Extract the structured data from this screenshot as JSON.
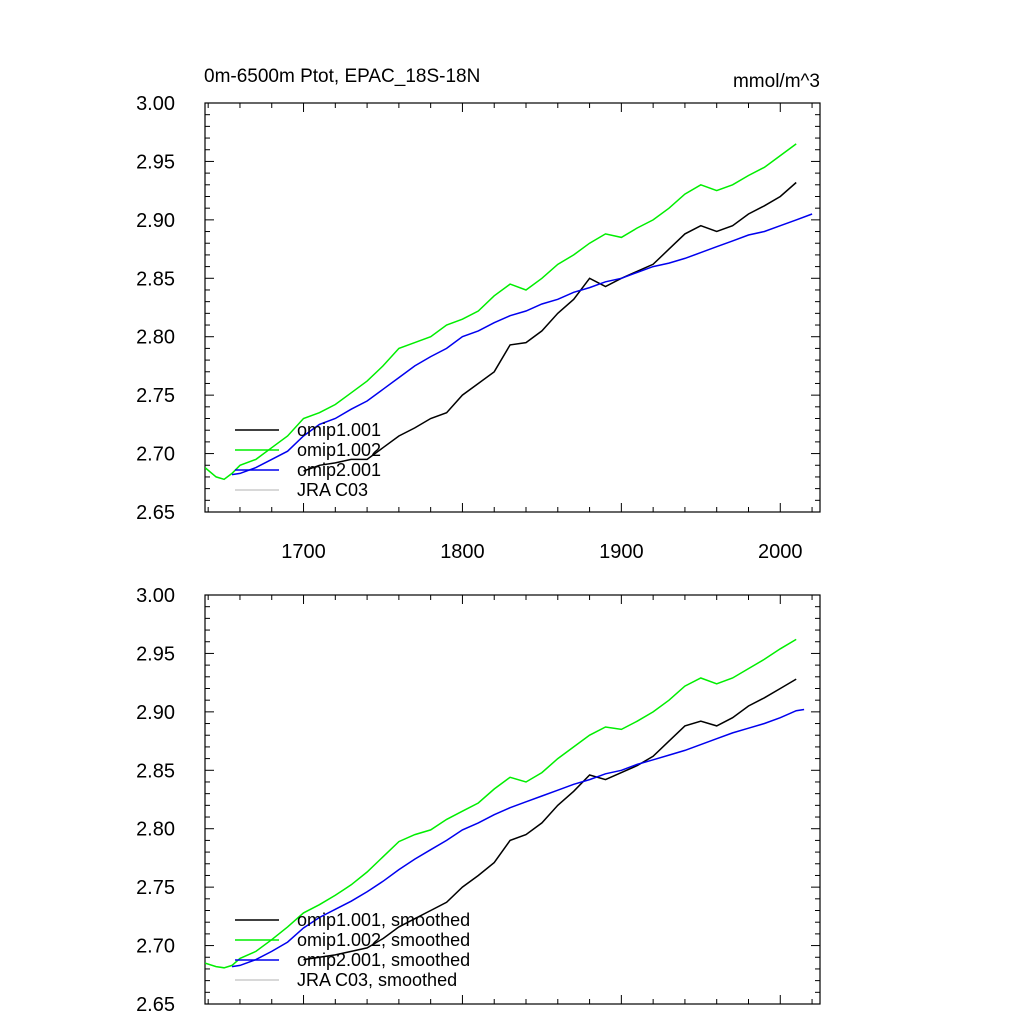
{
  "header": {
    "title": "0m-6500m Ptot, EPAC_18S-18N",
    "units": "mmol/m^3"
  },
  "chart_data": [
    {
      "type": "line",
      "title": "0m-6500m Ptot, EPAC_18S-18N",
      "units_label": "mmol/m^3",
      "xlim": [
        1638,
        2025
      ],
      "ylim": [
        2.65,
        3.0
      ],
      "xticks": [
        1700,
        1800,
        1900,
        2000
      ],
      "xtick_labels": [
        "1700",
        "1800",
        "1900",
        "2000"
      ],
      "yticks": [
        2.65,
        2.7,
        2.75,
        2.8,
        2.85,
        2.9,
        2.95,
        3.0
      ],
      "ytick_labels": [
        "2.65",
        "2.70",
        "2.75",
        "2.80",
        "2.85",
        "2.90",
        "2.95",
        "3.00"
      ],
      "legend_position": "lower-left",
      "series": [
        {
          "name": "omip1.001",
          "color": "#000000",
          "x": [
            1700,
            1710,
            1720,
            1730,
            1740,
            1750,
            1760,
            1770,
            1780,
            1790,
            1800,
            1810,
            1820,
            1830,
            1840,
            1850,
            1860,
            1870,
            1880,
            1890,
            1900,
            1910,
            1920,
            1930,
            1940,
            1950,
            1960,
            1970,
            1980,
            1990,
            2000,
            2010
          ],
          "y": [
            2.685,
            2.69,
            2.692,
            2.695,
            2.695,
            2.705,
            2.715,
            2.722,
            2.73,
            2.735,
            2.75,
            2.76,
            2.77,
            2.793,
            2.795,
            2.805,
            2.82,
            2.832,
            2.85,
            2.843,
            2.85,
            2.856,
            2.862,
            2.875,
            2.888,
            2.895,
            2.89,
            2.895,
            2.905,
            2.912,
            2.92,
            2.932
          ]
        },
        {
          "name": "omip1.002",
          "color": "#00ee00",
          "x": [
            1638,
            1645,
            1650,
            1655,
            1660,
            1670,
            1680,
            1690,
            1700,
            1710,
            1720,
            1730,
            1740,
            1750,
            1760,
            1770,
            1780,
            1790,
            1800,
            1810,
            1820,
            1830,
            1840,
            1850,
            1860,
            1870,
            1880,
            1890,
            1900,
            1910,
            1920,
            1930,
            1940,
            1950,
            1960,
            1970,
            1980,
            1990,
            2000,
            2010
          ],
          "y": [
            2.688,
            2.68,
            2.678,
            2.683,
            2.69,
            2.695,
            2.705,
            2.715,
            2.73,
            2.735,
            2.742,
            2.752,
            2.762,
            2.775,
            2.79,
            2.795,
            2.8,
            2.81,
            2.815,
            2.822,
            2.835,
            2.845,
            2.84,
            2.85,
            2.862,
            2.87,
            2.88,
            2.888,
            2.885,
            2.893,
            2.9,
            2.91,
            2.922,
            2.93,
            2.925,
            2.93,
            2.938,
            2.945,
            2.955,
            2.965
          ]
        },
        {
          "name": "omip2.001",
          "color": "#0000ee",
          "x": [
            1655,
            1660,
            1670,
            1680,
            1690,
            1700,
            1710,
            1720,
            1730,
            1740,
            1750,
            1760,
            1770,
            1780,
            1790,
            1800,
            1810,
            1820,
            1830,
            1840,
            1850,
            1860,
            1870,
            1880,
            1890,
            1900,
            1910,
            1920,
            1930,
            1940,
            1950,
            1960,
            1970,
            1980,
            1990,
            2000,
            2010,
            2020
          ],
          "y": [
            2.682,
            2.683,
            2.688,
            2.695,
            2.702,
            2.715,
            2.725,
            2.73,
            2.738,
            2.745,
            2.755,
            2.765,
            2.775,
            2.783,
            2.79,
            2.8,
            2.805,
            2.812,
            2.818,
            2.822,
            2.828,
            2.832,
            2.838,
            2.842,
            2.847,
            2.85,
            2.855,
            2.86,
            2.863,
            2.867,
            2.872,
            2.877,
            2.882,
            2.887,
            2.89,
            2.895,
            2.9,
            2.905
          ]
        },
        {
          "name": "JRA C03",
          "color": "#cccccc",
          "x": [],
          "y": []
        }
      ]
    },
    {
      "type": "line",
      "xlim": [
        1638,
        2025
      ],
      "ylim": [
        2.65,
        3.0
      ],
      "xticks": [
        1700,
        1800,
        1900,
        2000
      ],
      "yticks": [
        2.65,
        2.7,
        2.75,
        2.8,
        2.85,
        2.9,
        2.95,
        3.0
      ],
      "ytick_labels": [
        "2.65",
        "2.70",
        "2.75",
        "2.80",
        "2.85",
        "2.90",
        "2.95",
        "3.00"
      ],
      "legend_position": "lower-left",
      "series": [
        {
          "name": "omip1.001, smoothed",
          "color": "#000000",
          "x": [
            1700,
            1710,
            1720,
            1730,
            1740,
            1750,
            1760,
            1770,
            1780,
            1790,
            1800,
            1810,
            1820,
            1830,
            1840,
            1850,
            1860,
            1870,
            1880,
            1890,
            1900,
            1910,
            1920,
            1930,
            1940,
            1950,
            1960,
            1970,
            1980,
            1990,
            2000,
            2010
          ],
          "y": [
            2.688,
            2.69,
            2.692,
            2.695,
            2.698,
            2.706,
            2.716,
            2.723,
            2.73,
            2.737,
            2.75,
            2.76,
            2.771,
            2.79,
            2.795,
            2.805,
            2.82,
            2.832,
            2.846,
            2.842,
            2.848,
            2.854,
            2.862,
            2.875,
            2.888,
            2.892,
            2.888,
            2.895,
            2.905,
            2.912,
            2.92,
            2.928
          ]
        },
        {
          "name": "omip1.002, smoothed",
          "color": "#00ee00",
          "x": [
            1638,
            1645,
            1650,
            1655,
            1660,
            1670,
            1680,
            1690,
            1700,
            1710,
            1720,
            1730,
            1740,
            1750,
            1760,
            1770,
            1780,
            1790,
            1800,
            1810,
            1820,
            1830,
            1840,
            1850,
            1860,
            1870,
            1880,
            1890,
            1900,
            1910,
            1920,
            1930,
            1940,
            1950,
            1960,
            1970,
            1980,
            1990,
            2000,
            2010
          ],
          "y": [
            2.685,
            2.682,
            2.681,
            2.683,
            2.689,
            2.695,
            2.705,
            2.716,
            2.728,
            2.735,
            2.743,
            2.752,
            2.763,
            2.776,
            2.789,
            2.795,
            2.799,
            2.808,
            2.815,
            2.822,
            2.834,
            2.844,
            2.84,
            2.848,
            2.86,
            2.87,
            2.88,
            2.887,
            2.885,
            2.892,
            2.9,
            2.91,
            2.922,
            2.929,
            2.924,
            2.929,
            2.937,
            2.945,
            2.954,
            2.962
          ]
        },
        {
          "name": "omip2.001, smoothed",
          "color": "#0000ee",
          "x": [
            1655,
            1660,
            1670,
            1680,
            1690,
            1700,
            1710,
            1720,
            1730,
            1740,
            1750,
            1760,
            1770,
            1780,
            1790,
            1800,
            1810,
            1820,
            1830,
            1840,
            1850,
            1860,
            1870,
            1880,
            1890,
            1900,
            1910,
            1920,
            1930,
            1940,
            1950,
            1960,
            1970,
            1980,
            1990,
            2000,
            2010,
            2015
          ],
          "y": [
            2.682,
            2.683,
            2.688,
            2.695,
            2.703,
            2.715,
            2.724,
            2.731,
            2.738,
            2.746,
            2.755,
            2.765,
            2.774,
            2.782,
            2.79,
            2.799,
            2.805,
            2.812,
            2.818,
            2.823,
            2.828,
            2.833,
            2.838,
            2.842,
            2.847,
            2.85,
            2.855,
            2.859,
            2.863,
            2.867,
            2.872,
            2.877,
            2.882,
            2.886,
            2.89,
            2.895,
            2.901,
            2.902
          ]
        },
        {
          "name": "JRA C03, smoothed",
          "color": "#cccccc",
          "x": [],
          "y": []
        }
      ]
    }
  ]
}
